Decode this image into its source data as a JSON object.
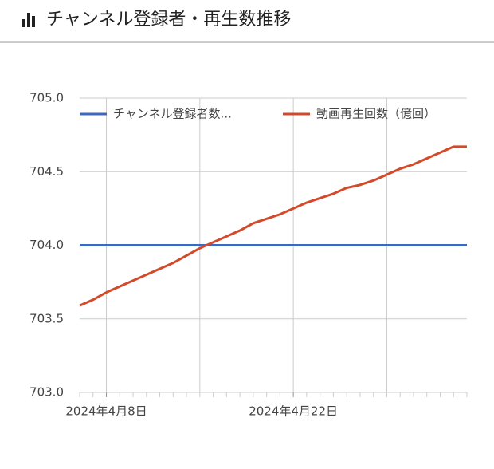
{
  "chart_data": {
    "type": "line",
    "title": "チャンネル登録者・再生数推移",
    "x": [
      "2024-04-06",
      "2024-04-07",
      "2024-04-08",
      "2024-04-09",
      "2024-04-10",
      "2024-04-11",
      "2024-04-12",
      "2024-04-13",
      "2024-04-14",
      "2024-04-15",
      "2024-04-16",
      "2024-04-17",
      "2024-04-18",
      "2024-04-19",
      "2024-04-20",
      "2024-04-21",
      "2024-04-22",
      "2024-04-23",
      "2024-04-24",
      "2024-04-25",
      "2024-04-26",
      "2024-04-27",
      "2024-04-28",
      "2024-04-29",
      "2024-04-30",
      "2024-05-01",
      "2024-05-02",
      "2024-05-03",
      "2024-05-04",
      "2024-05-05"
    ],
    "series": [
      {
        "name": "チャンネル登録者数...",
        "color": "#3c68c0",
        "values": [
          704,
          704,
          704,
          704,
          704,
          704,
          704,
          704,
          704,
          704,
          704,
          704,
          704,
          704,
          704,
          704,
          704,
          704,
          704,
          704,
          704,
          704,
          704,
          704,
          704,
          704,
          704,
          704,
          704,
          704
        ]
      },
      {
        "name": "動画再生回数（億回）",
        "color": "#d24a2a",
        "values": [
          703.59,
          703.63,
          703.68,
          703.72,
          703.76,
          703.8,
          703.84,
          703.88,
          703.93,
          703.98,
          704.02,
          704.06,
          704.1,
          704.15,
          704.18,
          704.21,
          704.25,
          704.29,
          704.32,
          704.35,
          704.39,
          704.41,
          704.44,
          704.48,
          704.52,
          704.55,
          704.59,
          704.63,
          704.67,
          704.67
        ]
      }
    ],
    "xlim": [
      "2024-04-06",
      "2024-05-05"
    ],
    "xticks": [
      {
        "value": "2024-04-08",
        "label": "2024年4月8日"
      },
      {
        "value": "2024-04-22",
        "label": "2024年4月22日"
      }
    ],
    "xgrid": [
      "2024-04-08",
      "2024-04-15",
      "2024-04-22",
      "2024-04-29"
    ],
    "ylim": [
      703,
      705
    ],
    "yticks": [
      {
        "value": 703,
        "label": "703.0"
      },
      {
        "value": 703.5,
        "label": "703.5"
      },
      {
        "value": 704,
        "label": "704.0"
      },
      {
        "value": 704.5,
        "label": "704.5"
      },
      {
        "value": 705,
        "label": "705.0"
      }
    ],
    "grid": true,
    "legend": "top"
  }
}
